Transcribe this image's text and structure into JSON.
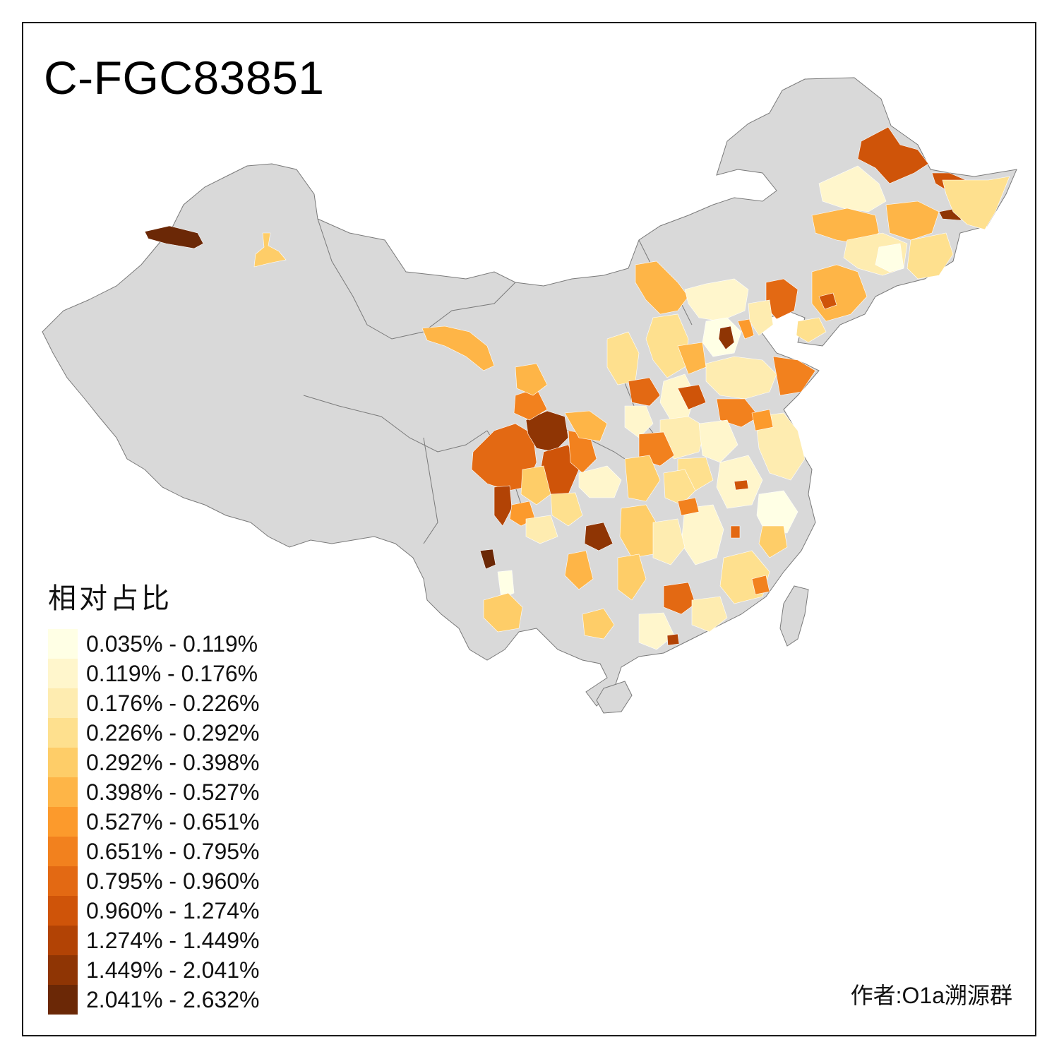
{
  "title": "C-FGC83851",
  "author": "作者:O1a溯源群",
  "colors": {
    "land": "#d9d9d9",
    "border": "#7a7a7a",
    "frame": "#1a1a1a"
  },
  "legend": {
    "title": "相对占比",
    "items": [
      {
        "label": "0.035% - 0.119%",
        "color": "#ffffe5"
      },
      {
        "label": "0.119% - 0.176%",
        "color": "#fff6cc"
      },
      {
        "label": "0.176% - 0.226%",
        "color": "#feecb0"
      },
      {
        "label": "0.226% - 0.292%",
        "color": "#fee08e"
      },
      {
        "label": "0.292% - 0.398%",
        "color": "#fecd68"
      },
      {
        "label": "0.398% - 0.527%",
        "color": "#feb547"
      },
      {
        "label": "0.527% - 0.651%",
        "color": "#fc9a2c"
      },
      {
        "label": "0.651% - 0.795%",
        "color": "#f2811e"
      },
      {
        "label": "0.795% - 0.960%",
        "color": "#e36913"
      },
      {
        "label": "0.960% - 1.274%",
        "color": "#cf5409"
      },
      {
        "label": "1.274% - 1.449%",
        "color": "#b24305"
      },
      {
        "label": "1.449% - 2.041%",
        "color": "#8f3504"
      },
      {
        "label": "2.041% - 2.632%",
        "color": "#6b2806"
      }
    ]
  }
}
